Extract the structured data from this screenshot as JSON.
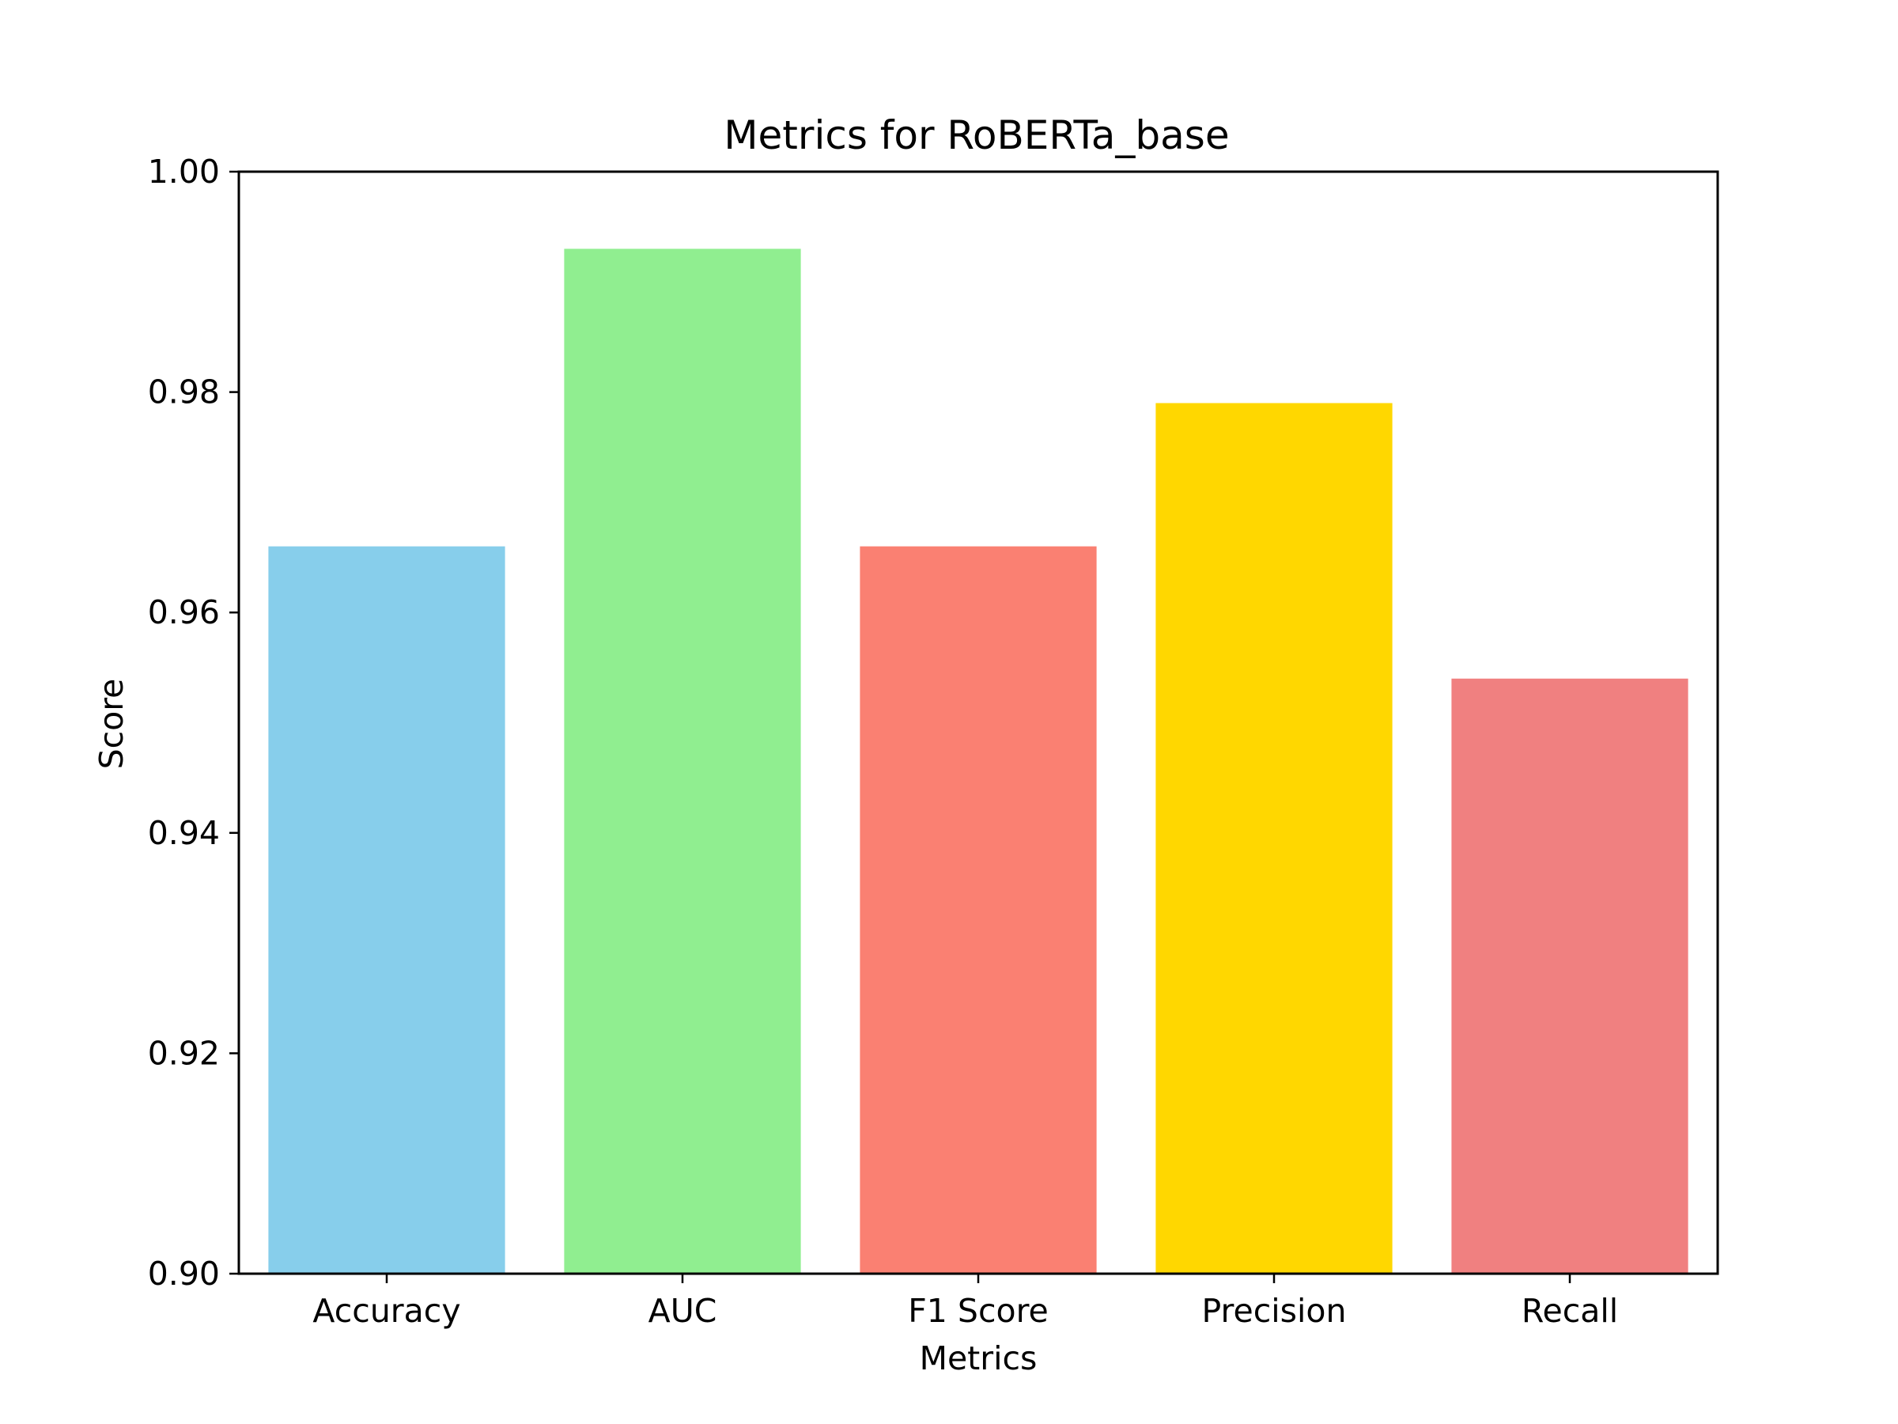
{
  "chart_data": {
    "type": "bar",
    "title": "Metrics for RoBERTa_base",
    "xlabel": "Metrics",
    "ylabel": "Score",
    "categories": [
      "Accuracy",
      "AUC",
      "F1 Score",
      "Precision",
      "Recall"
    ],
    "values": [
      0.966,
      0.993,
      0.966,
      0.979,
      0.954
    ],
    "colors": [
      "#87CEEB",
      "#90EE90",
      "#FA8072",
      "#FFD700",
      "#F08080"
    ],
    "ylim": [
      0.9,
      1.0
    ],
    "yticks": [
      "0.90",
      "0.92",
      "0.94",
      "0.96",
      "0.98",
      "1.00"
    ],
    "grid": false,
    "legend": false
  }
}
